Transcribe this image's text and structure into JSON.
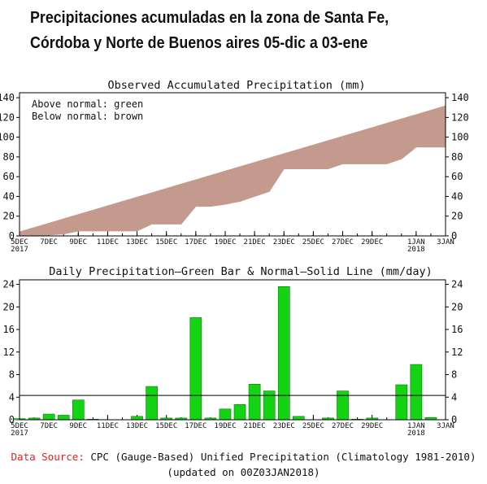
{
  "headline": {
    "line1": "Precipitaciones acumuladas en la zona de Santa Fe,",
    "line2": "Córdoba y Norte de Buenos aires 05-dic a 03-ene"
  },
  "colors": {
    "above_normal": "#2ecc2e",
    "below_normal": "#c49a8e",
    "bar": "#13d313",
    "normal_line": "#000000",
    "data_source_label": "#e02020"
  },
  "chart_data": [
    {
      "type": "area",
      "title": "Observed Accumulated Precipitation (mm)",
      "legend": {
        "above": "Above normal: green",
        "below": "Below normal: brown"
      },
      "legend_placement": "top-left",
      "x_ticks": [
        {
          "day": 0,
          "label": "5DEC",
          "label2": "2017"
        },
        {
          "day": 2,
          "label": "7DEC"
        },
        {
          "day": 4,
          "label": "9DEC"
        },
        {
          "day": 6,
          "label": "11DEC"
        },
        {
          "day": 8,
          "label": "13DEC"
        },
        {
          "day": 10,
          "label": "15DEC"
        },
        {
          "day": 12,
          "label": "17DEC"
        },
        {
          "day": 14,
          "label": "19DEC"
        },
        {
          "day": 16,
          "label": "21DEC"
        },
        {
          "day": 18,
          "label": "23DEC"
        },
        {
          "day": 20,
          "label": "25DEC"
        },
        {
          "day": 22,
          "label": "27DEC"
        },
        {
          "day": 24,
          "label": "29DEC"
        },
        {
          "day": 27,
          "label": "1JAN",
          "label2": "2018"
        },
        {
          "day": 29,
          "label": "3JAN"
        }
      ],
      "y_ticks_left": [
        "0",
        "20",
        "40",
        "60",
        "80",
        "100",
        "120",
        "140"
      ],
      "y_ticks_right": [
        "0",
        "20",
        "40",
        "60",
        "80",
        "100",
        "120",
        "140"
      ],
      "y_tick_values": [
        0,
        20,
        40,
        60,
        80,
        100,
        120,
        140
      ],
      "ylim": [
        0,
        145
      ],
      "xlim": [
        0,
        29
      ],
      "series": [
        {
          "name": "Observed",
          "x": [
            0,
            1,
            2,
            3,
            4,
            5,
            6,
            7,
            8,
            9,
            10,
            11,
            12,
            13,
            14,
            15,
            16,
            17,
            18,
            19,
            20,
            21,
            22,
            23,
            24,
            25,
            26,
            27,
            28,
            29
          ],
          "y": [
            0,
            0,
            1,
            2,
            5,
            5,
            5,
            5,
            5,
            12,
            12,
            12,
            30,
            30,
            32,
            35,
            40,
            45,
            68,
            68,
            68,
            68,
            73,
            73,
            73,
            73,
            78,
            90,
            90,
            90
          ]
        },
        {
          "name": "Normal",
          "x": [
            0,
            1,
            2,
            3,
            4,
            5,
            6,
            7,
            8,
            9,
            10,
            11,
            12,
            13,
            14,
            15,
            16,
            17,
            18,
            19,
            20,
            21,
            22,
            23,
            24,
            25,
            26,
            27,
            28,
            29
          ],
          "y": [
            4,
            8.4,
            12.8,
            17.2,
            21.6,
            26,
            30.4,
            34.8,
            39.2,
            43.6,
            48,
            52.4,
            56.8,
            61.2,
            65.6,
            70,
            74.4,
            78.8,
            83.2,
            87.6,
            92,
            96.4,
            100.8,
            105.2,
            109.6,
            114,
            118.4,
            122.8,
            127.2,
            131.6
          ]
        }
      ]
    },
    {
      "type": "bar",
      "title": "Daily Precipitation—Green Bar & Normal—Solid Line (mm/day)",
      "x_ticks": [
        {
          "day": 0,
          "label": "5DEC",
          "label2": "2017"
        },
        {
          "day": 2,
          "label": "7DEC"
        },
        {
          "day": 4,
          "label": "9DEC"
        },
        {
          "day": 6,
          "label": "11DEC"
        },
        {
          "day": 8,
          "label": "13DEC"
        },
        {
          "day": 10,
          "label": "15DEC"
        },
        {
          "day": 12,
          "label": "17DEC"
        },
        {
          "day": 14,
          "label": "19DEC"
        },
        {
          "day": 16,
          "label": "21DEC"
        },
        {
          "day": 18,
          "label": "23DEC"
        },
        {
          "day": 20,
          "label": "25DEC"
        },
        {
          "day": 22,
          "label": "27DEC"
        },
        {
          "day": 24,
          "label": "29DEC"
        },
        {
          "day": 27,
          "label": "1JAN",
          "label2": "2018"
        },
        {
          "day": 29,
          "label": "3JAN"
        }
      ],
      "y_ticks_left": [
        "0",
        "4",
        "8",
        "12",
        "16",
        "20",
        "24"
      ],
      "y_ticks_right": [
        "0",
        "4",
        "8",
        "12",
        "16",
        "20",
        "24"
      ],
      "y_tick_values": [
        0,
        4,
        8,
        12,
        16,
        20,
        24
      ],
      "ylim": [
        0,
        24.8
      ],
      "xlim": [
        0,
        29
      ],
      "bars": {
        "x": [
          0,
          1,
          2,
          3,
          4,
          5,
          6,
          7,
          8,
          9,
          10,
          11,
          12,
          13,
          14,
          15,
          16,
          17,
          18,
          19,
          20,
          21,
          22,
          23,
          24,
          25,
          26,
          27,
          28
        ],
        "y": [
          0.2,
          0.3,
          1.0,
          0.8,
          3.5,
          0.1,
          0,
          0,
          0.6,
          5.9,
          0.3,
          0.3,
          18.1,
          0.3,
          1.9,
          2.7,
          6.3,
          5.1,
          23.6,
          0.6,
          0,
          0.3,
          5.1,
          0.1,
          0.3,
          0,
          6.2,
          9.8,
          0.4
        ]
      },
      "normal": {
        "y": 4.3
      }
    }
  ],
  "footer": {
    "source_label": "Data Source:",
    "source_text": "CPC (Gauge-Based) Unified Precipitation (Climatology 1981-2010)",
    "updated": "(updated on 00Z03JAN2018)"
  }
}
